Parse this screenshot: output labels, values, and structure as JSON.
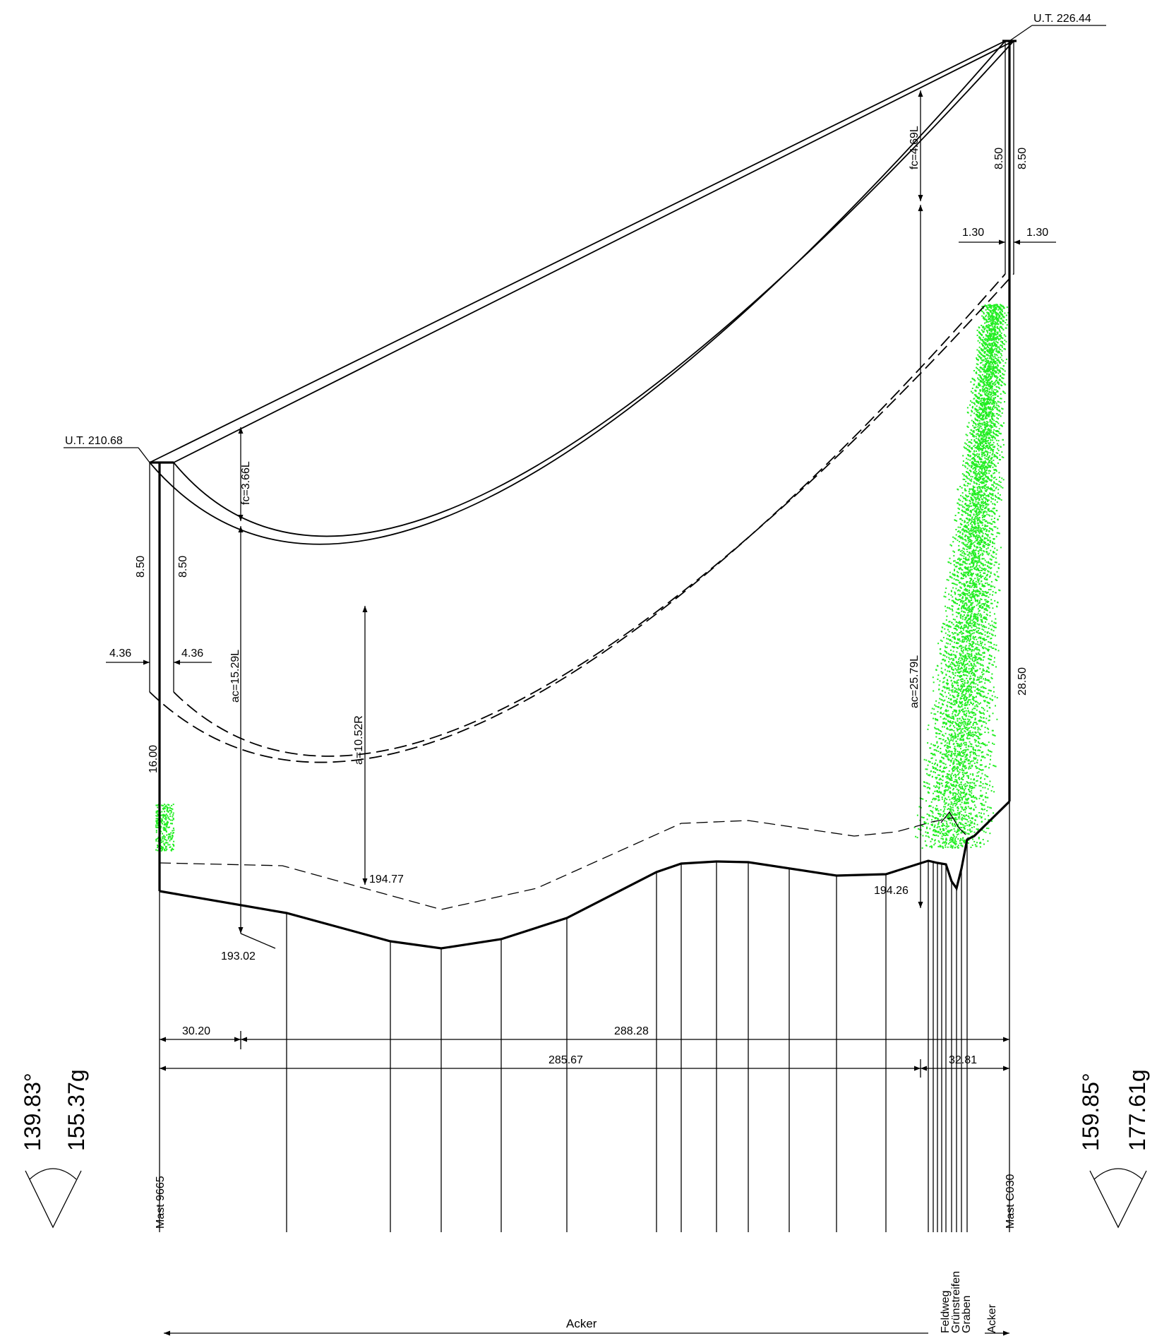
{
  "top_right_elevation": "U.T. 226.44",
  "top_left_elevation": "U.T. 210.68",
  "dims": {
    "left_height_a": "8.50",
    "left_height_b": "8.50",
    "right_height_a": "8.50",
    "right_height_b": "8.50",
    "left_offset_a": "4.36",
    "left_offset_b": "4.36",
    "right_offset_a": "1.30",
    "right_offset_b": "1.30",
    "left_ground_clearance": "16.00",
    "right_ground_clearance": "28.50",
    "fc_left": "fc=3.66L",
    "ac_left": "ac=15.29L",
    "fc_right": "fc=4.69L",
    "ac_right": "ac=25.79L",
    "a_mid": "a=10.52R",
    "span_a_left": "30.20",
    "span_a_right": "288.28",
    "span_b_left": "285.67",
    "span_b_right": "32.81"
  },
  "elevations": {
    "e1": "194.77",
    "e2": "193.02",
    "e3": "194.26"
  },
  "angles": {
    "left_deg": "139.83°",
    "left_gon": "155.37g",
    "right_deg": "159.85°",
    "right_gon": "177.61g"
  },
  "masts": {
    "left": "Mast 9665",
    "right": "Mast C030"
  },
  "land_use": {
    "main": "Acker",
    "feldweg": "Feldweg",
    "gruenstreifen": "Grünstreifen",
    "graben": "Graben",
    "acker_right": "Acker"
  },
  "colors": {
    "vegetation": "#22ee22"
  }
}
